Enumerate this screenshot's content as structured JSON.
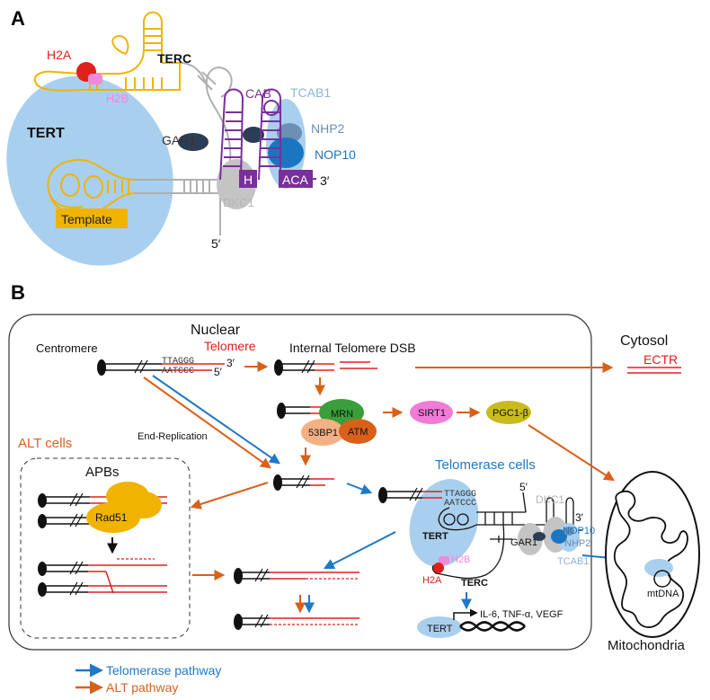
{
  "panel_a": {
    "label": "A",
    "h2a": "H2A",
    "h2b": "H2B",
    "terc": "TERC",
    "tert": "TERT",
    "cab": "CAB",
    "tcab1": "TCAB1",
    "gar1": "GAR1",
    "nhp2": "NHP2",
    "nop10": "NOP10",
    "h_box": "H",
    "aca_box": "ACA",
    "three_prime": "3′",
    "five_prime": "5′",
    "dkc1": "DKC1",
    "template": "Template"
  },
  "panel_b": {
    "label": "B",
    "nuclear": "Nuclear",
    "cytosol": "Cytosol",
    "centromere": "Centromere",
    "telomere": "Telomere",
    "ttaggg": "TTAGGG",
    "aatccc": "AATCCC",
    "three_prime": "3′",
    "five_prime": "5′",
    "internal_dsb": "Internal Telomere DSB",
    "ectr": "ECTR",
    "mrn": "MRN",
    "bp53": "53BP1",
    "atm": "ATM",
    "sirt1": "SIRT1",
    "pgc1": "PGC1-β",
    "end_replication": "End-Replication",
    "alt_cells": "ALT cells",
    "apbs": "APBs",
    "rad51": "Rad51",
    "telomerase_cells": "Telomerase cells",
    "dkc1": "DKC1",
    "nop10": "NOP10",
    "nhp2": "NHP2",
    "gar1": "GAR1",
    "tcab1": "TCAB1",
    "tert": "TERT",
    "h2b": "H2B",
    "h2a": "H2A",
    "terc": "TERC",
    "genes": "IL-6, TNF-α, VEGF",
    "tert_gene": "TERT",
    "mtdna": "mtDNA",
    "mitochondria": "Mitochondria"
  },
  "legend": {
    "telomerase_pathway": "Telomerase pathway",
    "alt_pathway": "ALT pathway"
  },
  "colors": {
    "orange": "#d9601a",
    "blue": "#1f78c8",
    "red": "#e0201b",
    "light_blue": "#a9cfee",
    "purple": "#7a2f9c",
    "gold": "#f0b400",
    "grey": "#b5b5b5"
  }
}
